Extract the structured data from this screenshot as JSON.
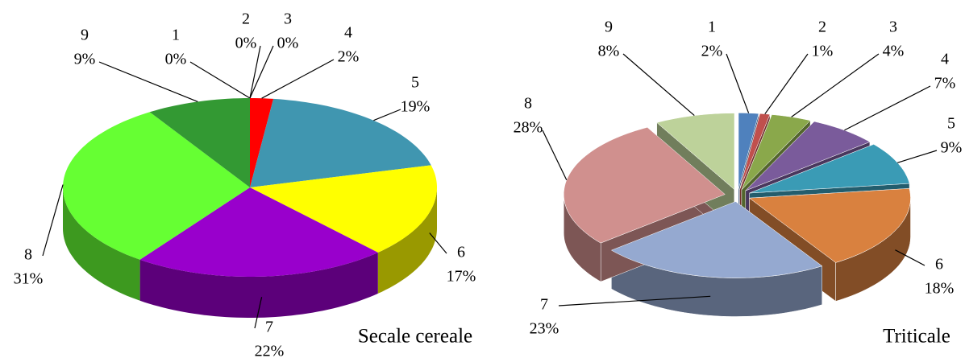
{
  "chart_data": [
    {
      "type": "pie",
      "title": "Secale cereale",
      "categories": [
        "1",
        "2",
        "3",
        "4",
        "5",
        "6",
        "7",
        "8",
        "9"
      ],
      "values": [
        0,
        0,
        0,
        2,
        19,
        17,
        22,
        31,
        9
      ],
      "value_labels": [
        "0%",
        "0%",
        "0%",
        "2%",
        "19%",
        "17%",
        "22%",
        "31%",
        "9%"
      ],
      "colors": [
        "#4f81bd",
        "#c0504d",
        "#9bbb59",
        "#ff0000",
        "#4096b0",
        "#ffff00",
        "#9900cc",
        "#66ff33",
        "#339933"
      ]
    },
    {
      "type": "pie",
      "title": "Triticale",
      "categories": [
        "1",
        "2",
        "3",
        "4",
        "5",
        "6",
        "7",
        "8",
        "9"
      ],
      "values": [
        2,
        1,
        4,
        7,
        9,
        18,
        23,
        28,
        8
      ],
      "value_labels": [
        "2%",
        "1%",
        "4%",
        "7%",
        "9%",
        "18%",
        "23%",
        "28%",
        "8%"
      ],
      "colors": [
        "#4f81bd",
        "#c0504d",
        "#8aa84b",
        "#7a5b9b",
        "#3a9bb5",
        "#d9813f",
        "#95a9d0",
        "#d0908e",
        "#bdd29a"
      ]
    }
  ]
}
